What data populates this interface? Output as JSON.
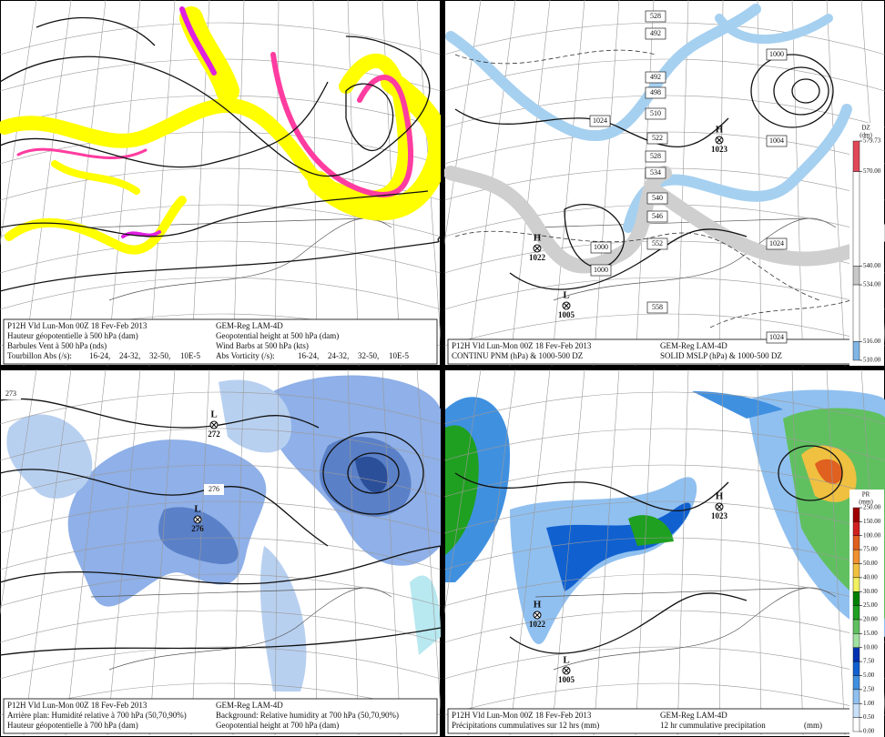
{
  "panels": [
    {
      "caption_left": [
        "P12H Vld Lun-Mon 00Z 18 Fev-Feb 2013",
        "Hauteur géopotentielle à 500 hPa (dam)",
        "Barbules Vent à 500 hPa (nds)"
      ],
      "caption_right": [
        "GEM-Reg LAM-4D",
        "Geopotential height at 500 hPa (dam)",
        "Wind Barbs at 500 hPa  (kts)"
      ],
      "legend_left": {
        "label": "Tourbillon Abs (/s):",
        "ranges": [
          "16-24,",
          "24-32,",
          "32-50,"
        ],
        "unit": "10E-5"
      },
      "legend_right": {
        "label": "Abs Vorticity (/s):",
        "ranges": [
          "16-24,",
          "24-32,",
          "32-50,"
        ],
        "unit": "10E-5"
      },
      "range_colors": [
        "#b8a800",
        "#e020e0",
        "#e02020"
      ]
    },
    {
      "caption_left": [
        "P12H Vld Lun-Mon 00Z 18 Fev-Feb 2013",
        "CONTINU PNM  (hPa) & 1000-500 DZ"
      ],
      "caption_right": [
        "GEM-Reg LAM-4D",
        "SOLID   MSLP (hPa) & 1000-500 DZ"
      ],
      "centers": [
        {
          "type": "H",
          "value": 1023
        },
        {
          "type": "H",
          "value": 1022
        },
        {
          "type": "L",
          "value": 1005
        }
      ],
      "contour_labels": [
        528,
        492,
        492,
        498,
        510,
        522,
        528,
        534,
        540,
        546,
        552,
        558,
        1024,
        1000,
        1004,
        1024,
        1000,
        1000,
        1024
      ],
      "colorbar": {
        "title": "DZ",
        "unit": "(dm)",
        "ticks": [
          {
            "value": 579.73,
            "label": "579.73"
          },
          {
            "value": 570,
            "label": "570.00"
          },
          {
            "value": 540,
            "label": "540.00"
          },
          {
            "value": 534,
            "label": "534.00"
          },
          {
            "value": 516,
            "label": "516.00"
          },
          {
            "value": 510,
            "label": "510.00"
          }
        ],
        "colors": [
          "#e04858",
          "#ffffff",
          "#c8c8c8",
          "#ffffff",
          "#7fb6e6"
        ]
      }
    },
    {
      "caption_left": [
        "P12H Vld Lun-Mon 00Z 18 Fev-Feb 2013",
        "Arrière plan: Humidité relative à 700 hPa (50,70,90%)",
        "Hauteur géopotentielle à 700 hPa (dam)"
      ],
      "caption_right": [
        "GEM-Reg LAM-4D",
        "Background: Relative humidity at 700 hPa (50,70,90%)",
        "Geopotential height at 700 hPa (dam)"
      ],
      "highlight_line": 1,
      "highlight_color": "#1a1ad0",
      "centers": [
        {
          "type": "L",
          "value": 272
        },
        {
          "type": "L",
          "value": 276
        }
      ],
      "contour_labels": [
        273,
        276
      ]
    },
    {
      "caption_left": [
        "P12H Vld Lun-Mon 00Z 18 Fev-Feb 2013",
        "Précipitations cummulatives sur 12 hrs (mm)"
      ],
      "caption_right": [
        "GEM-Reg LAM-4D",
        "12 hr cummulative precipitation"
      ],
      "caption_unit": "(mm)",
      "centers": [
        {
          "type": "H",
          "value": 1023
        },
        {
          "type": "H",
          "value": 1022
        },
        {
          "type": "L",
          "value": 1005
        }
      ],
      "colorbar": {
        "title": "PR",
        "unit": "(mm)",
        "ticks": [
          {
            "value": 250,
            "label": "250.00"
          },
          {
            "value": 150,
            "label": "150.00"
          },
          {
            "value": 100,
            "label": "100.00"
          },
          {
            "value": 75,
            "label": "75.00"
          },
          {
            "value": 50,
            "label": "50.00"
          },
          {
            "value": 40,
            "label": "40.00"
          },
          {
            "value": 30,
            "label": "30.00"
          },
          {
            "value": 25,
            "label": "25.00"
          },
          {
            "value": 20,
            "label": "20.00"
          },
          {
            "value": 15,
            "label": "15.00"
          },
          {
            "value": 10,
            "label": "10.00"
          },
          {
            "value": 7.5,
            "label": "7.50"
          },
          {
            "value": 5,
            "label": "5.00"
          },
          {
            "value": 2.5,
            "label": "2.50"
          },
          {
            "value": 1,
            "label": "1.00"
          },
          {
            "value": 0.5,
            "label": "0.50"
          },
          {
            "value": 0,
            "label": "0.00"
          }
        ],
        "colors": [
          "#a00000",
          "#d02020",
          "#e06020",
          "#f09030",
          "#f0c040",
          "#f0f060",
          "#008000",
          "#20a020",
          "#60c060",
          "#a0e0a0",
          "#0030b0",
          "#1060d0",
          "#4090e0",
          "#90c0f0",
          "#c8e0f8",
          "#ffffff"
        ]
      }
    }
  ]
}
